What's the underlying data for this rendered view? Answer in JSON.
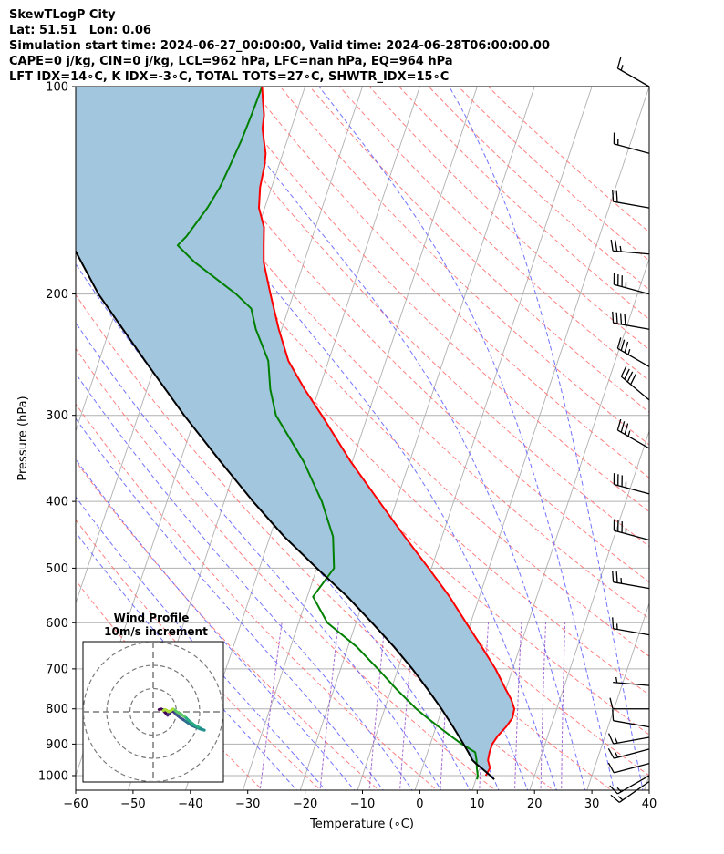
{
  "header": {
    "line1": "SkewTLogP City",
    "line2": "Lat: 51.51   Lon: 0.06",
    "line3": "Simulation start time: 2024-06-27_00:00:00, Valid time: 2024-06-28T06:00:00.00",
    "line4": "CAPE=0 j/kg, CIN=0 j/kg, LCL=962 hPa, LFC=nan hPa, EQ=964 hPa",
    "line5": "LFT IDX=14$^\\circ$C, K IDX=-3$^\\circ$C, TOTAL TOTS=27$^\\circ$C, SHWTR_IDX=15$^\\circ$C"
  },
  "header_display": {
    "line5": "LFT IDX=14∘C, K IDX=-3∘C, TOTAL TOTS=27∘C, SHWTR_IDX=15∘C"
  },
  "chart_data": {
    "type": "line",
    "subtype": "skew-t log-p",
    "xlabel": "Temperature (∘C)",
    "ylabel": "Pressure (hPa)",
    "xlim": [
      -60,
      40
    ],
    "ylim": [
      1050,
      100
    ],
    "x_ticks": [
      "−60",
      "−50",
      "−40",
      "−30",
      "−20",
      "−10",
      "0",
      "10",
      "20",
      "30",
      "40"
    ],
    "y_ticks": [
      "100",
      "200",
      "300",
      "400",
      "500",
      "600",
      "700",
      "800",
      "900",
      "1000"
    ],
    "y_scale": "log",
    "grid": true,
    "colors": {
      "temperature": "#ff0000",
      "dewpoint": "#008000",
      "parcel": "#000000",
      "cape_fill": "#a3c6df",
      "dry_adiabats": "#ff6a6a",
      "moist_adiabats": "#5a5aff",
      "mixing_ratio": "#8e44c8",
      "isotherms": "#aaaaaa"
    },
    "series": [
      {
        "name": "temperature",
        "points": [
          [
            1000,
            11.5
          ],
          [
            975,
            11.8
          ],
          [
            950,
            11.0
          ],
          [
            925,
            10.8
          ],
          [
            900,
            10.8
          ],
          [
            875,
            11.3
          ],
          [
            850,
            12.2
          ],
          [
            825,
            12.8
          ],
          [
            800,
            12.6
          ],
          [
            775,
            11.5
          ],
          [
            750,
            10.0
          ],
          [
            700,
            7.0
          ],
          [
            650,
            3.3
          ],
          [
            600,
            -0.8
          ],
          [
            550,
            -5.2
          ],
          [
            500,
            -10.5
          ],
          [
            450,
            -16.5
          ],
          [
            400,
            -23.0
          ],
          [
            350,
            -30.3
          ],
          [
            300,
            -38.0
          ],
          [
            275,
            -42.5
          ],
          [
            250,
            -47.0
          ],
          [
            225,
            -50.5
          ],
          [
            200,
            -54.0
          ],
          [
            180,
            -57.0
          ],
          [
            170,
            -58.0
          ],
          [
            160,
            -59.0
          ],
          [
            150,
            -61.0
          ],
          [
            140,
            -62.0
          ],
          [
            130,
            -62.5
          ],
          [
            125,
            -63.0
          ],
          [
            120,
            -64.0
          ],
          [
            115,
            -65.0
          ],
          [
            110,
            -65.5
          ],
          [
            105,
            -66.5
          ],
          [
            100,
            -67.5
          ]
        ]
      },
      {
        "name": "dewpoint",
        "points": [
          [
            1013,
            10.2
          ],
          [
            1000,
            10.1
          ],
          [
            975,
            9.5
          ],
          [
            950,
            9.0
          ],
          [
            925,
            8.3
          ],
          [
            900,
            5.5
          ],
          [
            875,
            3.0
          ],
          [
            850,
            0.5
          ],
          [
            825,
            -2.0
          ],
          [
            800,
            -4.5
          ],
          [
            750,
            -9.0
          ],
          [
            700,
            -13.5
          ],
          [
            650,
            -18.5
          ],
          [
            600,
            -25.0
          ],
          [
            550,
            -29.0
          ],
          [
            500,
            -27.0
          ],
          [
            450,
            -29.0
          ],
          [
            400,
            -33.0
          ],
          [
            350,
            -38.5
          ],
          [
            300,
            -46.0
          ],
          [
            275,
            -48.5
          ],
          [
            250,
            -50.5
          ],
          [
            225,
            -54.5
          ],
          [
            210,
            -56.5
          ],
          [
            200,
            -60.0
          ],
          [
            180,
            -69.0
          ],
          [
            170,
            -73.0
          ],
          [
            165,
            -72.0
          ],
          [
            150,
            -70.0
          ],
          [
            140,
            -69.0
          ],
          [
            130,
            -68.5
          ],
          [
            120,
            -68.0
          ],
          [
            110,
            -67.7
          ],
          [
            100,
            -67.5
          ]
        ]
      },
      {
        "name": "parcel",
        "points": [
          [
            1013,
            13.2
          ],
          [
            1000,
            12.3
          ],
          [
            975,
            10.3
          ],
          [
            962,
            9.2
          ],
          [
            950,
            8.3
          ],
          [
            925,
            7.1
          ],
          [
            900,
            5.8
          ],
          [
            850,
            3.0
          ],
          [
            800,
            -0.1
          ],
          [
            750,
            -3.6
          ],
          [
            700,
            -7.5
          ],
          [
            650,
            -12.0
          ],
          [
            600,
            -17.2
          ],
          [
            550,
            -23.0
          ],
          [
            500,
            -30.0
          ],
          [
            450,
            -37.5
          ],
          [
            400,
            -45.0
          ],
          [
            350,
            -53.0
          ],
          [
            300,
            -62.0
          ],
          [
            250,
            -72.0
          ],
          [
            200,
            -84.0
          ],
          [
            150,
            -97.0
          ],
          [
            125,
            -104.0
          ],
          [
            100,
            -112.0
          ]
        ]
      }
    ],
    "wind_barbs": [
      {
        "p": 100,
        "speed": 15,
        "dir": 300
      },
      {
        "p": 125,
        "speed": 15,
        "dir": 285
      },
      {
        "p": 150,
        "speed": 20,
        "dir": 280
      },
      {
        "p": 175,
        "speed": 25,
        "dir": 275
      },
      {
        "p": 200,
        "speed": 35,
        "dir": 285
      },
      {
        "p": 225,
        "speed": 40,
        "dir": 280
      },
      {
        "p": 255,
        "speed": 35,
        "dir": 300
      },
      {
        "p": 285,
        "speed": 40,
        "dir": 310
      },
      {
        "p": 335,
        "speed": 35,
        "dir": 300
      },
      {
        "p": 390,
        "speed": 35,
        "dir": 285
      },
      {
        "p": 455,
        "speed": 35,
        "dir": 285
      },
      {
        "p": 535,
        "speed": 25,
        "dir": 280
      },
      {
        "p": 625,
        "speed": 15,
        "dir": 280
      },
      {
        "p": 740,
        "speed": 5,
        "dir": 275
      },
      {
        "p": 800,
        "speed": 10,
        "dir": 270
      },
      {
        "p": 850,
        "speed": 10,
        "dir": 280
      },
      {
        "p": 880,
        "speed": 15,
        "dir": 260
      },
      {
        "p": 915,
        "speed": 15,
        "dir": 255
      },
      {
        "p": 960,
        "speed": 10,
        "dir": 255
      },
      {
        "p": 1000,
        "speed": 15,
        "dir": 240
      },
      {
        "p": 1020,
        "speed": 15,
        "dir": 235
      }
    ],
    "hodograph": {
      "title": "Wind Profile",
      "subtitle": "10m/s increment",
      "rings_ms": [
        10,
        20,
        30
      ],
      "colormap": "viridis",
      "points_uv": [
        [
          2.5,
          1.0
        ],
        [
          3.5,
          1.2
        ],
        [
          4.5,
          0.8
        ],
        [
          4.8,
          0.0
        ],
        [
          5.6,
          -0.8
        ],
        [
          6.2,
          -1.5
        ],
        [
          6.8,
          -0.9
        ],
        [
          7.4,
          -0.2
        ],
        [
          8.1,
          0.5
        ],
        [
          8.8,
          0.0
        ],
        [
          9.4,
          -0.6
        ],
        [
          10.0,
          -1.0
        ],
        [
          10.7,
          -1.8
        ],
        [
          11.7,
          -2.6
        ],
        [
          12.7,
          -3.2
        ],
        [
          13.7,
          -3.9
        ],
        [
          14.7,
          -4.6
        ],
        [
          15.7,
          -5.3
        ],
        [
          16.6,
          -5.9
        ],
        [
          17.8,
          -6.4
        ],
        [
          19.0,
          -6.9
        ],
        [
          20.2,
          -7.4
        ],
        [
          21.0,
          -7.6
        ],
        [
          22.0,
          -7.9
        ],
        [
          21.2,
          -7.6
        ],
        [
          19.5,
          -6.6
        ],
        [
          17.8,
          -5.7
        ],
        [
          16.3,
          -4.6
        ],
        [
          15.0,
          -3.4
        ],
        [
          14.2,
          -2.6
        ],
        [
          13.4,
          -2.0
        ],
        [
          12.5,
          -1.4
        ],
        [
          11.6,
          -0.6
        ],
        [
          10.5,
          -0.3
        ],
        [
          9.5,
          0.6
        ],
        [
          8.5,
          1.2
        ],
        [
          7.6,
          0.5
        ],
        [
          6.8,
          0.1
        ],
        [
          6.0,
          0.5
        ],
        [
          5.2,
          1.0
        ],
        [
          4.3,
          0.5
        ]
      ]
    }
  }
}
